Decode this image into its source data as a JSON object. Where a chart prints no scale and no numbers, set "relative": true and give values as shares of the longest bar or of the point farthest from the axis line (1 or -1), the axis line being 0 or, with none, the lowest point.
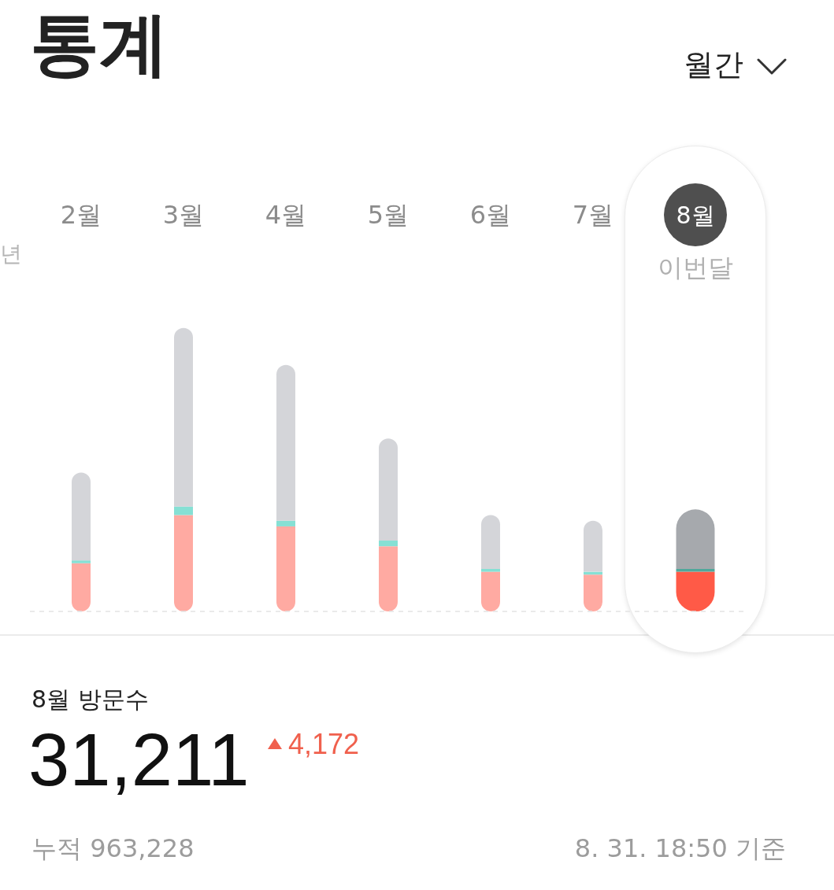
{
  "chart_data": {
    "type": "bar",
    "title": "통계",
    "categories": [
      "2월",
      "3월",
      "4월",
      "5월",
      "6월",
      "7월",
      "8월"
    ],
    "series": [
      {
        "colors": [
          "#ffaaa2",
          "#ffaaa2",
          "#ffaaa2",
          "#ffaaa2",
          "#ffaaa2",
          "#ffaaa2",
          "#ff5a47"
        ],
        "values": [
          0.17,
          0.34,
          0.3,
          0.23,
          0.14,
          0.13,
          0.14
        ]
      },
      {
        "colors": [
          "#86e0d4",
          "#86e0d4",
          "#86e0d4",
          "#86e0d4",
          "#86e0d4",
          "#86e0d4",
          "#4fa89b"
        ],
        "values": [
          0.01,
          0.03,
          0.02,
          0.02,
          0.01,
          0.01,
          0.01
        ]
      },
      {
        "colors": [
          "#d4d5d9",
          "#d4d5d9",
          "#d4d5d9",
          "#d4d5d9",
          "#d4d5d9",
          "#d4d5d9",
          "#a6a9ad"
        ],
        "values": [
          0.31,
          0.63,
          0.55,
          0.36,
          0.19,
          0.18,
          0.21
        ]
      }
    ],
    "stacked": true,
    "relative": true,
    "tick_labels": "x",
    "annotations": [
      "년",
      "월간",
      "이번달",
      "8월 방문수",
      "31,211",
      "4,172",
      "누적 963,228",
      "8. 31. 18:50 기준"
    ]
  }
}
